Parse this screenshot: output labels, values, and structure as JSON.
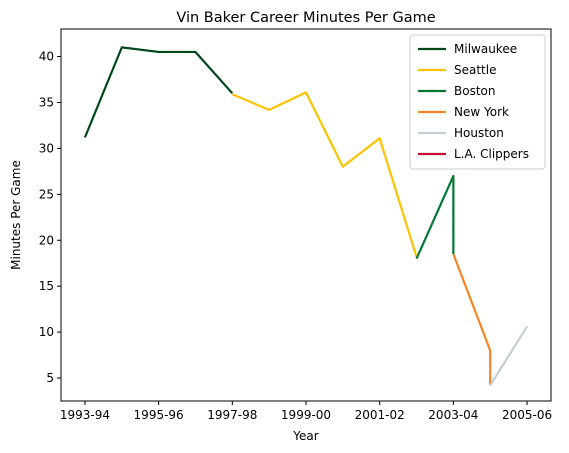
{
  "chart_data": {
    "type": "line",
    "title": "Vin Baker Career Minutes Per Game",
    "xlabel": "Year",
    "ylabel": "Minutes Per Game",
    "x_tick_labels": [
      "1993-94",
      "1995-96",
      "1997-98",
      "1999-00",
      "2001-02",
      "2003-04",
      "2005-06"
    ],
    "x_tick_values": [
      0,
      2,
      4,
      6,
      8,
      10,
      12
    ],
    "y_ticks": [
      5,
      10,
      15,
      20,
      25,
      30,
      35,
      40
    ],
    "xlim": [
      -0.65,
      12.65
    ],
    "ylim": [
      2.5,
      43.0
    ],
    "grid": false,
    "legend_position": "top-right",
    "series": [
      {
        "name": "Milwaukee",
        "color": "#00471B",
        "x": [
          0,
          1,
          2,
          3,
          4
        ],
        "y": [
          31.2,
          41.0,
          40.5,
          40.5,
          36.0
        ]
      },
      {
        "name": "Seattle",
        "color": "#FFC200",
        "x": [
          4,
          5,
          6,
          7,
          8,
          9
        ],
        "y": [
          35.9,
          34.2,
          36.1,
          28.0,
          31.1,
          18.2
        ]
      },
      {
        "name": "Boston",
        "color": "#007A33",
        "x": [
          9,
          10,
          10
        ],
        "y": [
          18.0,
          27.0,
          18.5
        ]
      },
      {
        "name": "New York",
        "color": "#F58426",
        "x": [
          10,
          11,
          11
        ],
        "y": [
          18.5,
          8.0,
          4.2
        ]
      },
      {
        "name": "Houston",
        "color": "#C4CED4",
        "x": [
          11,
          12
        ],
        "y": [
          4.2,
          10.6
        ]
      },
      {
        "name": "L.A. Clippers",
        "color": "#C8102E",
        "x": [],
        "y": []
      }
    ]
  }
}
